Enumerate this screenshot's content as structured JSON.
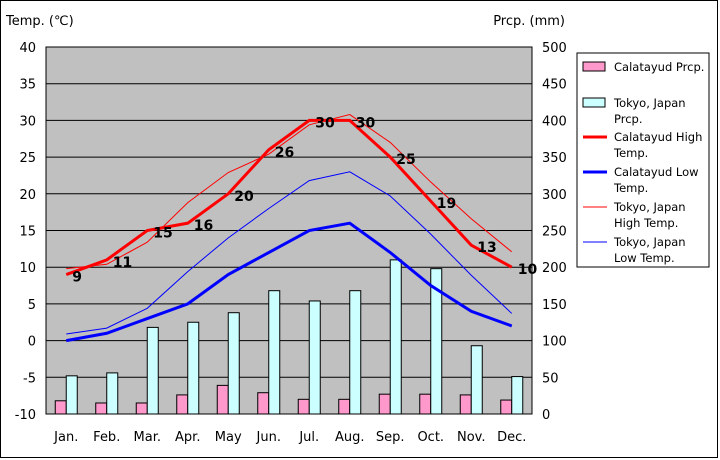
{
  "chart_data": {
    "type": "bar",
    "title": "",
    "ylabel_left": "Temp. (℃)",
    "ylabel_right": "Prcp. (mm)",
    "categories": [
      "Jan.",
      "Feb.",
      "Mar.",
      "Apr.",
      "May",
      "Jun.",
      "Jul.",
      "Aug.",
      "Sep.",
      "Oct.",
      "Nov.",
      "Dec."
    ],
    "ylim_left": [
      -10,
      40
    ],
    "ylim_right": [
      0,
      500
    ],
    "yticks_left": [
      "-10",
      "-5",
      "0",
      "5",
      "10",
      "15",
      "20",
      "25",
      "30",
      "35",
      "40"
    ],
    "yticks_right": [
      "0",
      "50",
      "100",
      "150",
      "200",
      "250",
      "300",
      "350",
      "400",
      "450",
      "500"
    ],
    "grid": true,
    "legend_position": "right",
    "series": [
      {
        "name": "Calatayud Prcp.",
        "kind": "bar",
        "axis": "right",
        "color": "#ff99cc",
        "values": [
          18,
          15,
          15,
          26,
          39,
          29,
          20,
          20,
          27,
          27,
          26,
          19
        ]
      },
      {
        "name": "Tokyo, Japan Prcp.",
        "kind": "bar",
        "axis": "right",
        "color": "#ccffff",
        "values": [
          52,
          56,
          118,
          125,
          138,
          168,
          154,
          168,
          210,
          198,
          93,
          51
        ]
      },
      {
        "name": "Calatayud High Temp.",
        "kind": "line",
        "axis": "left",
        "color": "#ff0000",
        "values": [
          9,
          11,
          15,
          16,
          20,
          26,
          30,
          30,
          25,
          19,
          13,
          10
        ],
        "labels": [
          "9",
          "11",
          "15",
          "16",
          "20",
          "26",
          "30",
          "30",
          "25",
          "19",
          "13",
          "10"
        ]
      },
      {
        "name": "Calatayud Low Temp.",
        "kind": "line",
        "axis": "left",
        "color": "#0000ff",
        "values": [
          0,
          1,
          3,
          5,
          9,
          12,
          15,
          16,
          12,
          7.5,
          4,
          2
        ]
      },
      {
        "name": "Tokyo, Japan High Temp.",
        "kind": "line",
        "axis": "left",
        "color": "#ff0000",
        "values": [
          9.8,
          10.4,
          13.4,
          18.8,
          22.9,
          25.4,
          29.4,
          30.8,
          27,
          21.6,
          16.6,
          12.1
        ]
      },
      {
        "name": "Tokyo, Japan Low Temp.",
        "kind": "line",
        "axis": "left",
        "color": "#0000ff",
        "values": [
          0.9,
          1.7,
          4.4,
          9.4,
          14,
          18,
          21.8,
          23,
          19.7,
          14.5,
          8.9,
          3.7
        ]
      }
    ],
    "legend_entries": [
      {
        "kind": "bar",
        "color": "#ff99cc",
        "lines": [
          "Calatayud Prcp."
        ]
      },
      {
        "kind": "bar",
        "color": "#ccffff",
        "lines": [
          "Tokyo, Japan",
          "Prcp."
        ]
      },
      {
        "kind": "line",
        "color": "#ff0000",
        "weight": "thick",
        "lines": [
          "Calatayud High",
          "Temp."
        ]
      },
      {
        "kind": "line",
        "color": "#0000ff",
        "weight": "thick",
        "lines": [
          "Calatayud Low",
          "Temp."
        ]
      },
      {
        "kind": "line",
        "color": "#ff0000",
        "weight": "thin",
        "lines": [
          "Tokyo, Japan",
          "High Temp."
        ]
      },
      {
        "kind": "line",
        "color": "#0000ff",
        "weight": "thin",
        "lines": [
          "Tokyo, Japan",
          "Low Temp."
        ]
      }
    ]
  }
}
